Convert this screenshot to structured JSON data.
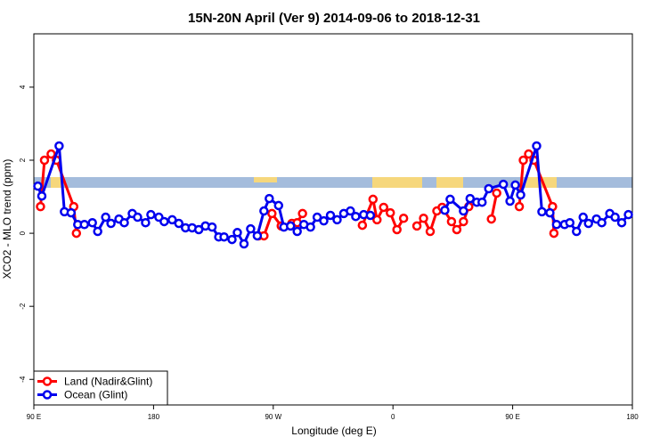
{
  "chart_data": {
    "type": "line",
    "title": "15N-20N April (Ver 9)   2014-09-06 to 2018-12-31",
    "xlabel": "Longitude (deg E)",
    "ylabel": "XCO2 - MLO trend (ppm)",
    "xlim": [
      90,
      540
    ],
    "ylim": [
      -4.7,
      5.46
    ],
    "xticks": [
      {
        "value": 90,
        "label": "90 E"
      },
      180,
      {
        "value": 270,
        "label": "90 W"
      },
      {
        "value": 360,
        "label": "0"
      },
      {
        "value": 450,
        "label": "90 E"
      },
      {
        "value": 540,
        "label": "180"
      }
    ],
    "yticks": [
      -4,
      -2,
      0,
      2,
      4
    ],
    "legend": "bottom-left",
    "series": [
      {
        "name": "Land (Nadir&Glint)",
        "color": "#ff0000",
        "x": [
          95,
          98,
          103,
          107,
          120,
          122,
          null,
          259,
          263,
          269,
          276,
          284,
          288,
          292,
          null,
          337,
          345,
          348,
          353,
          358,
          363,
          368,
          null,
          378,
          383,
          388,
          393,
          397,
          404,
          408,
          413,
          417,
          null,
          434,
          438,
          null,
          455,
          458,
          462,
          466,
          480,
          481
        ],
        "values": [
          0.73,
          2.0,
          2.17,
          2.0,
          0.73,
          0.0,
          null,
          -0.07,
          -0.07,
          0.54,
          0.2,
          0.27,
          0.29,
          0.54,
          null,
          0.22,
          0.93,
          0.37,
          0.71,
          0.56,
          0.1,
          0.41,
          null,
          0.2,
          0.41,
          0.05,
          0.61,
          0.71,
          0.32,
          0.1,
          0.32,
          0.73,
          null,
          0.39,
          1.1,
          null,
          0.73,
          2.0,
          2.17,
          2.0,
          0.73,
          0.0
        ]
      },
      {
        "name": "Ocean (Glint)",
        "color": "#0000ee",
        "x": [
          93,
          96,
          109,
          113,
          118,
          123,
          128,
          134,
          138,
          144,
          148,
          154,
          158,
          164,
          168,
          174,
          178,
          184,
          188,
          194,
          199,
          204,
          209,
          214,
          219,
          224,
          229,
          233,
          239,
          243,
          248,
          253,
          258,
          263,
          267,
          274,
          278,
          283,
          288,
          293,
          298,
          303,
          308,
          313,
          318,
          323,
          328,
          332,
          338,
          343,
          null,
          399,
          403,
          413,
          418,
          423,
          427,
          432,
          443,
          448,
          452,
          456,
          468,
          472,
          478,
          483,
          489,
          493,
          498,
          503,
          507,
          513,
          517,
          523,
          527,
          532,
          537
        ],
        "values": [
          1.29,
          1.02,
          2.39,
          0.59,
          0.56,
          0.24,
          0.24,
          0.29,
          0.05,
          0.44,
          0.27,
          0.39,
          0.29,
          0.54,
          0.44,
          0.29,
          0.51,
          0.44,
          0.32,
          0.37,
          0.27,
          0.15,
          0.15,
          0.1,
          0.2,
          0.17,
          -0.1,
          -0.1,
          -0.17,
          0.02,
          -0.29,
          0.12,
          -0.07,
          0.61,
          0.95,
          0.76,
          0.17,
          0.2,
          0.05,
          0.24,
          0.17,
          0.44,
          0.34,
          0.49,
          0.37,
          0.54,
          0.61,
          0.46,
          0.51,
          0.49,
          null,
          0.63,
          0.93,
          0.61,
          0.95,
          0.85,
          0.85,
          1.22,
          1.34,
          0.88,
          1.32,
          1.05,
          2.39,
          0.59,
          0.56,
          0.24,
          0.24,
          0.29,
          0.05,
          0.44,
          0.27,
          0.39,
          0.29,
          0.54,
          0.44,
          0.29,
          0.51
        ]
      }
    ]
  }
}
